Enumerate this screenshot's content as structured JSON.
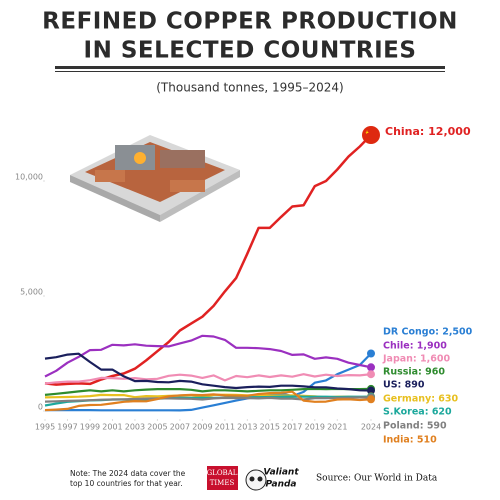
{
  "chart_data": {
    "type": "line",
    "title": [
      "REFINED COPPER PRODUCTION",
      "IN SELECTED COUNTRIES"
    ],
    "subtitle": "(Thousand tonnes, 1995–2024)",
    "x": [
      1995,
      1996,
      1997,
      1998,
      1999,
      2000,
      2001,
      2002,
      2003,
      2004,
      2005,
      2006,
      2007,
      2008,
      2009,
      2010,
      2011,
      2012,
      2013,
      2014,
      2015,
      2016,
      2017,
      2018,
      2019,
      2020,
      2021,
      2022,
      2023,
      2024
    ],
    "xlim": [
      1995,
      2024
    ],
    "xticks": [
      1995,
      1997,
      1999,
      2001,
      2003,
      2005,
      2007,
      2009,
      2011,
      2013,
      2015,
      2017,
      2019,
      2021,
      2024
    ],
    "ylim": [
      0,
      12000
    ],
    "yticks": [
      0,
      {
        "value": 5000,
        "label": "5,000"
      },
      {
        "value": 10000,
        "label": "10,000"
      }
    ],
    "series": [
      {
        "name": "China: 12,000",
        "color": "#e02222",
        "values": [
          1200,
          1150,
          1180,
          1200,
          1180,
          1370,
          1520,
          1630,
          1840,
          2200,
          2600,
          3000,
          3500,
          3800,
          4100,
          4570,
          5200,
          5780,
          6840,
          7960,
          7960,
          8440,
          8890,
          8950,
          9780,
          10000,
          10500,
          11060,
          11500,
          12000
        ]
      },
      {
        "name": "DR Congo: 2,500",
        "color": "#2a7fd4",
        "values": [
          40,
          40,
          40,
          40,
          40,
          30,
          30,
          30,
          30,
          30,
          30,
          30,
          25,
          50,
          150,
          250,
          350,
          450,
          550,
          650,
          740,
          770,
          650,
          830,
          1230,
          1330,
          1600,
          1800,
          2000,
          2500
        ]
      },
      {
        "name": "Chile: 1,900",
        "color": "#9b30c0",
        "values": [
          1500,
          1750,
          2100,
          2350,
          2650,
          2660,
          2880,
          2850,
          2900,
          2840,
          2820,
          2810,
          2940,
          3060,
          3270,
          3240,
          3090,
          2750,
          2750,
          2730,
          2690,
          2610,
          2440,
          2460,
          2270,
          2330,
          2270,
          2100,
          2000,
          1900
        ]
      },
      {
        "name": "Japan: 1,600",
        "color": "#f08cb4",
        "values": [
          1190,
          1250,
          1280,
          1280,
          1340,
          1440,
          1430,
          1400,
          1430,
          1380,
          1400,
          1530,
          1580,
          1540,
          1440,
          1550,
          1330,
          1520,
          1470,
          1550,
          1480,
          1550,
          1490,
          1600,
          1500,
          1580,
          1520,
          1560,
          1550,
          1600
        ]
      },
      {
        "name": "Russia: 960",
        "color": "#2e8b2e",
        "values": [
          700,
          750,
          800,
          850,
          900,
          850,
          900,
          850,
          900,
          930,
          950,
          950,
          950,
          920,
          850,
          900,
          900,
          880,
          850,
          880,
          900,
          900,
          920,
          950,
          960,
          950,
          960,
          950,
          950,
          960
        ]
      },
      {
        "name": "US: 890",
        "color": "#1a1f5c",
        "values": [
          2280,
          2340,
          2450,
          2490,
          2130,
          1800,
          1800,
          1510,
          1300,
          1310,
          1260,
          1250,
          1310,
          1280,
          1160,
          1100,
          1040,
          1000,
          1040,
          1060,
          1050,
          1100,
          1100,
          1070,
          1030,
          1030,
          980,
          950,
          900,
          890
        ]
      },
      {
        "name": "Germany: 630",
        "color": "#e8c020",
        "values": [
          590,
          600,
          610,
          620,
          650,
          700,
          690,
          690,
          600,
          650,
          640,
          660,
          670,
          690,
          600,
          700,
          710,
          700,
          680,
          690,
          670,
          670,
          680,
          660,
          640,
          590,
          620,
          620,
          600,
          630
        ]
      },
      {
        "name": "S.Korea: 620",
        "color": "#1ca89c",
        "values": [
          240,
          320,
          400,
          430,
          460,
          470,
          500,
          500,
          510,
          500,
          530,
          560,
          580,
          570,
          580,
          570,
          580,
          590,
          600,
          600,
          610,
          620,
          630,
          620,
          620,
          620,
          610,
          620,
          620,
          620
        ]
      },
      {
        "name": "Poland: 590",
        "color": "#808080",
        "values": [
          410,
          420,
          440,
          450,
          470,
          490,
          500,
          510,
          520,
          540,
          550,
          550,
          540,
          530,
          500,
          550,
          570,
          560,
          560,
          550,
          570,
          540,
          540,
          500,
          560,
          560,
          570,
          580,
          590,
          590
        ]
      },
      {
        "name": "India: 510",
        "color": "#e08020",
        "values": [
          40,
          60,
          90,
          220,
          260,
          270,
          330,
          400,
          430,
          420,
          520,
          640,
          680,
          700,
          690,
          720,
          680,
          670,
          660,
          740,
          780,
          790,
          840,
          450,
          400,
          410,
          500,
          510,
          480,
          510
        ]
      }
    ],
    "note": [
      "Note: The 2024 data cover the",
      "top 10 countries for that year."
    ],
    "logos": [
      "GLOBAL",
      "TIMES",
      "Valiant",
      "Panda"
    ],
    "source": "Source: Our World in Data"
  }
}
